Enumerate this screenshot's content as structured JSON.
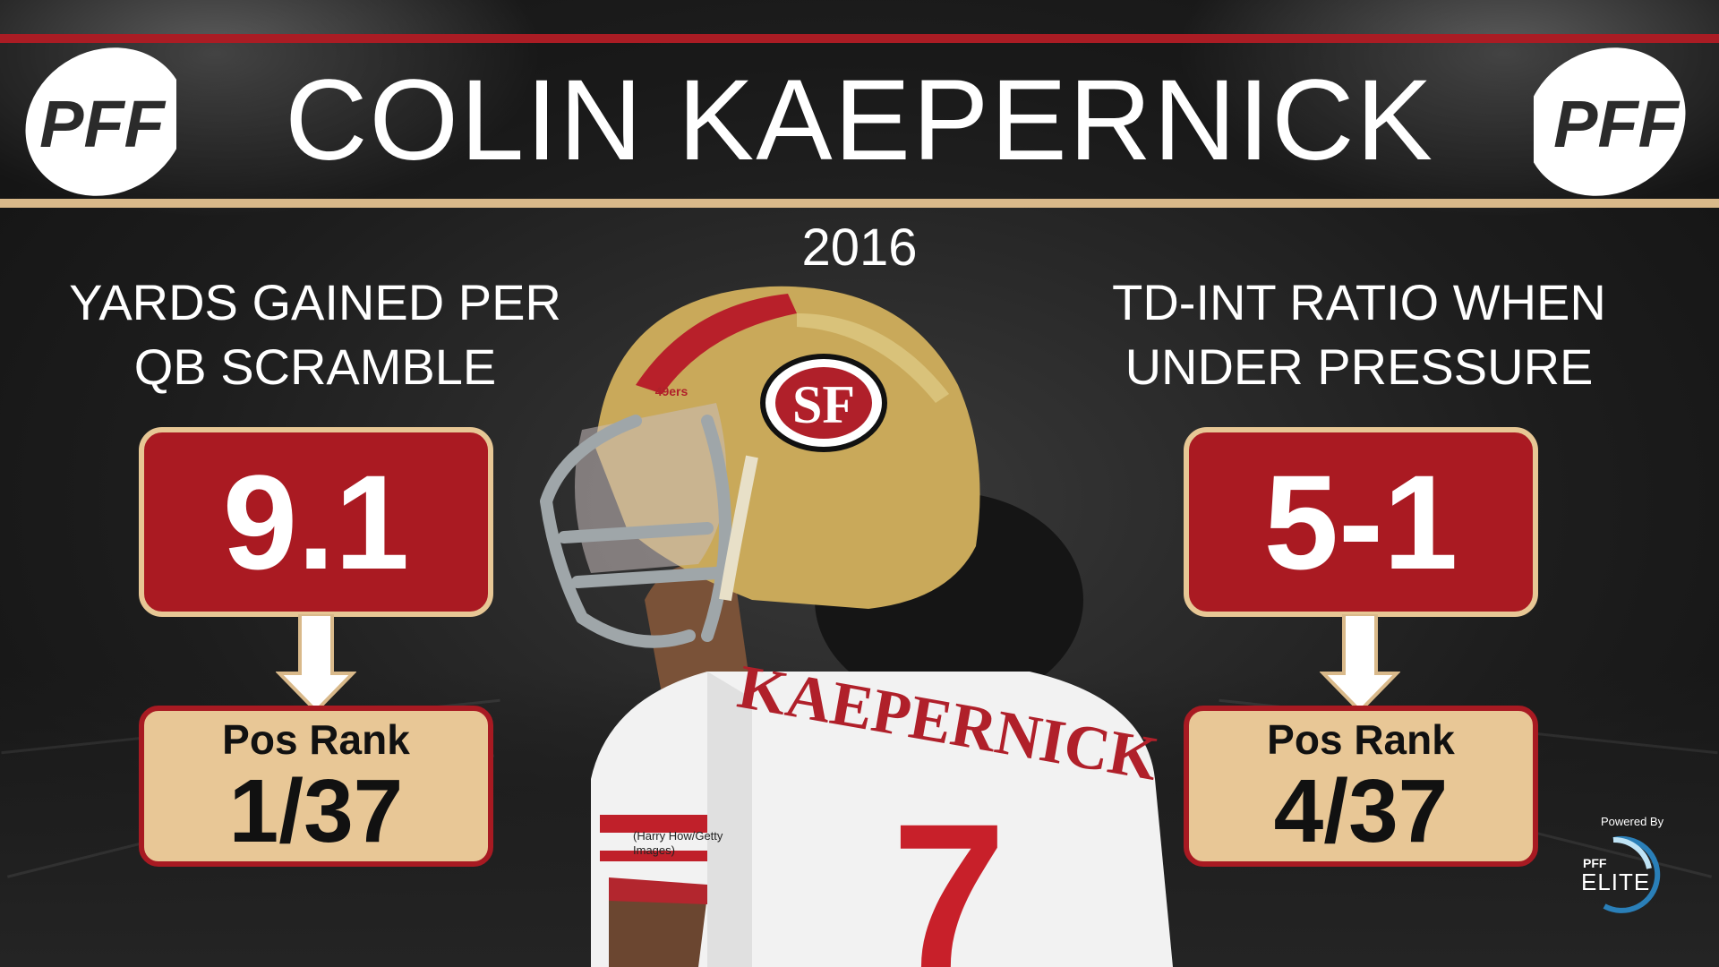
{
  "header": {
    "title": "COLIN KAEPERNICK",
    "year": "2016",
    "logo_text": "PFF"
  },
  "stats": [
    {
      "heading_line1": "YARDS GAINED PER",
      "heading_line2": "QB SCRAMBLE",
      "value": "9.1",
      "rank_label": "Pos Rank",
      "rank_value": "1/37"
    },
    {
      "heading_line1": "TD-INT RATIO WHEN",
      "heading_line2": "UNDER PRESSURE",
      "value": "5-1",
      "rank_label": "Pos Rank",
      "rank_value": "4/37"
    }
  ],
  "photo": {
    "credit": "(Harry How/Getty Images)",
    "jersey_name": "KAEPERNICK",
    "jersey_number": "7",
    "helmet_logo": "SF",
    "helmet_tag": "49ers"
  },
  "branding": {
    "powered_by": "Powered By",
    "elite_pff": "PFF",
    "elite_text": "ELITE"
  },
  "colors": {
    "red": "#aa1a22",
    "gold": "#e8c796",
    "background": "#1c1c1c"
  }
}
